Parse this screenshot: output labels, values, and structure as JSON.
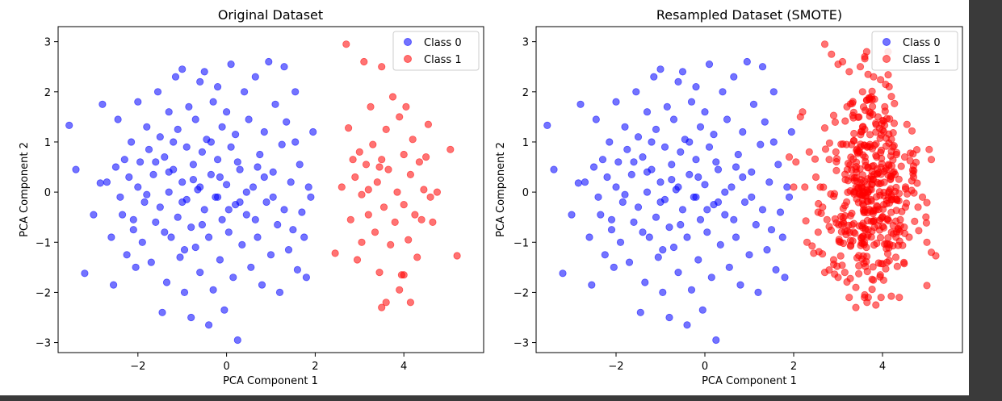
{
  "chart_data": [
    {
      "type": "scatter",
      "title": "Original Dataset",
      "xlabel": "PCA Component 1",
      "ylabel": "PCA Component 2",
      "xlim": [
        -3.8,
        5.8
      ],
      "ylim": [
        -3.2,
        3.3
      ],
      "xticks": [
        -2,
        0,
        2,
        4
      ],
      "yticks": [
        -3,
        -2,
        -1,
        0,
        1,
        2,
        3
      ],
      "xtick_labels": [
        "−2",
        "0",
        "2",
        "4"
      ],
      "ytick_labels": [
        "−3",
        "−2",
        "−1",
        "0",
        "1",
        "2",
        "3"
      ],
      "grid": false,
      "legend_position": "top-right",
      "series": [
        {
          "name": "Class 0",
          "color": "#0000ff",
          "points": [
            [
              -3.55,
              1.33
            ],
            [
              -3.4,
              0.45
            ],
            [
              -3.2,
              -1.62
            ],
            [
              -3.0,
              -0.45
            ],
            [
              -2.85,
              0.18
            ],
            [
              -2.8,
              1.75
            ],
            [
              -2.7,
              0.2
            ],
            [
              -2.6,
              -0.9
            ],
            [
              -2.55,
              -1.85
            ],
            [
              -2.5,
              0.5
            ],
            [
              -2.45,
              1.45
            ],
            [
              -2.4,
              -0.1
            ],
            [
              -2.35,
              -0.45
            ],
            [
              -2.3,
              0.65
            ],
            [
              -2.25,
              -1.25
            ],
            [
              -2.2,
              0.3
            ],
            [
              -2.15,
              1.0
            ],
            [
              -2.1,
              -0.75
            ],
            [
              -2.05,
              -1.5
            ],
            [
              -2.0,
              0.1
            ],
            [
              -2.0,
              1.8
            ],
            [
              -1.95,
              0.6
            ],
            [
              -1.9,
              -1.0
            ],
            [
              -1.85,
              -0.2
            ],
            [
              -1.8,
              1.3
            ],
            [
              -1.75,
              0.85
            ],
            [
              -1.7,
              -1.4
            ],
            [
              -1.65,
              0.35
            ],
            [
              -1.6,
              -0.6
            ],
            [
              -1.55,
              2.0
            ],
            [
              -1.5,
              1.1
            ],
            [
              -1.5,
              -0.3
            ],
            [
              -1.45,
              -2.4
            ],
            [
              -1.4,
              0.7
            ],
            [
              -1.35,
              -1.8
            ],
            [
              -1.3,
              0.0
            ],
            [
              -1.3,
              1.6
            ],
            [
              -1.25,
              -0.9
            ],
            [
              -1.2,
              0.45
            ],
            [
              -1.15,
              2.3
            ],
            [
              -1.1,
              -0.5
            ],
            [
              -1.1,
              1.25
            ],
            [
              -1.05,
              -1.3
            ],
            [
              -1.0,
              0.2
            ],
            [
              -1.0,
              2.45
            ],
            [
              -0.95,
              -2.0
            ],
            [
              -0.9,
              0.9
            ],
            [
              -0.9,
              -0.15
            ],
            [
              -0.85,
              1.7
            ],
            [
              -0.8,
              -0.7
            ],
            [
              -0.8,
              -2.5
            ],
            [
              -0.75,
              0.55
            ],
            [
              -0.7,
              1.45
            ],
            [
              -0.7,
              -1.1
            ],
            [
              -0.65,
              0.05
            ],
            [
              -0.6,
              2.2
            ],
            [
              -0.6,
              -1.6
            ],
            [
              -0.55,
              0.8
            ],
            [
              -0.5,
              -0.35
            ],
            [
              -0.5,
              2.4
            ],
            [
              -0.45,
              1.05
            ],
            [
              -0.4,
              -2.65
            ],
            [
              -0.4,
              -0.9
            ],
            [
              -0.35,
              0.35
            ],
            [
              -0.3,
              1.8
            ],
            [
              -0.3,
              -1.95
            ],
            [
              -0.25,
              -0.1
            ],
            [
              -0.2,
              0.65
            ],
            [
              -0.2,
              2.1
            ],
            [
              -0.15,
              -1.35
            ],
            [
              -0.1,
              1.3
            ],
            [
              -0.1,
              -0.55
            ],
            [
              -0.05,
              -2.35
            ],
            [
              0.0,
              0.15
            ],
            [
              0.0,
              1.6
            ],
            [
              0.05,
              -0.8
            ],
            [
              0.1,
              2.55
            ],
            [
              0.1,
              0.9
            ],
            [
              0.15,
              -1.7
            ],
            [
              0.2,
              -0.25
            ],
            [
              0.2,
              1.15
            ],
            [
              0.25,
              -2.95
            ],
            [
              0.3,
              0.45
            ],
            [
              0.35,
              -1.05
            ],
            [
              0.4,
              2.0
            ],
            [
              0.45,
              -0.45
            ],
            [
              0.5,
              1.45
            ],
            [
              0.55,
              -1.5
            ],
            [
              0.6,
              0.1
            ],
            [
              0.65,
              2.3
            ],
            [
              0.7,
              -0.9
            ],
            [
              0.75,
              0.75
            ],
            [
              0.8,
              -1.85
            ],
            [
              0.85,
              1.2
            ],
            [
              0.9,
              -0.2
            ],
            [
              0.95,
              2.6
            ],
            [
              1.0,
              -1.25
            ],
            [
              1.05,
              0.4
            ],
            [
              1.1,
              1.75
            ],
            [
              1.15,
              -0.65
            ],
            [
              1.2,
              -2.0
            ],
            [
              1.25,
              0.95
            ],
            [
              1.3,
              -0.35
            ],
            [
              1.35,
              1.4
            ],
            [
              1.4,
              -1.15
            ],
            [
              1.45,
              0.2
            ],
            [
              1.5,
              -0.75
            ],
            [
              1.55,
              1.0
            ],
            [
              1.6,
              -1.55
            ],
            [
              1.65,
              0.55
            ],
            [
              1.7,
              -0.4
            ],
            [
              1.75,
              -0.9
            ],
            [
              1.8,
              -1.7
            ],
            [
              1.85,
              0.1
            ],
            [
              1.9,
              -0.1
            ],
            [
              1.95,
              1.2
            ],
            [
              1.55,
              2.0
            ],
            [
              1.3,
              2.5
            ],
            [
              -2.1,
              -0.55
            ],
            [
              -1.8,
              -0.05
            ],
            [
              -1.6,
              0.6
            ],
            [
              -1.4,
              -0.8
            ],
            [
              -1.2,
              1.0
            ],
            [
              -0.95,
              -1.15
            ],
            [
              -0.75,
              0.25
            ],
            [
              -0.55,
              -0.65
            ],
            [
              -0.35,
              1.0
            ],
            [
              -0.15,
              0.3
            ],
            [
              0.05,
              -0.35
            ],
            [
              0.25,
              0.6
            ],
            [
              0.45,
              0.0
            ],
            [
              0.65,
              -0.55
            ],
            [
              0.85,
              0.3
            ],
            [
              -1.0,
              -0.2
            ],
            [
              -0.6,
              0.1
            ],
            [
              -0.2,
              -0.1
            ],
            [
              0.3,
              -0.2
            ],
            [
              0.7,
              0.5
            ],
            [
              1.05,
              -0.1
            ],
            [
              -1.3,
              0.4
            ]
          ]
        },
        {
          "name": "Class 1",
          "color": "#ff0000",
          "points": [
            [
              2.45,
              -1.22
            ],
            [
              2.6,
              0.1
            ],
            [
              2.7,
              2.95
            ],
            [
              2.75,
              1.28
            ],
            [
              2.8,
              -0.55
            ],
            [
              2.85,
              0.65
            ],
            [
              2.9,
              0.3
            ],
            [
              2.95,
              -1.35
            ],
            [
              3.0,
              0.8
            ],
            [
              3.05,
              -0.05
            ],
            [
              3.05,
              -1.0
            ],
            [
              3.1,
              2.6
            ],
            [
              3.15,
              0.55
            ],
            [
              3.2,
              -0.45
            ],
            [
              3.25,
              1.7
            ],
            [
              3.3,
              0.95
            ],
            [
              3.35,
              -0.8
            ],
            [
              3.4,
              0.2
            ],
            [
              3.45,
              -1.6
            ],
            [
              3.5,
              2.5
            ],
            [
              3.5,
              0.65
            ],
            [
              3.55,
              -0.3
            ],
            [
              3.6,
              1.25
            ],
            [
              3.6,
              -2.2
            ],
            [
              3.65,
              0.45
            ],
            [
              3.7,
              -1.05
            ],
            [
              3.75,
              1.9
            ],
            [
              3.8,
              -0.6
            ],
            [
              3.85,
              0.0
            ],
            [
              3.9,
              1.5
            ],
            [
              3.95,
              -1.65
            ],
            [
              4.0,
              0.75
            ],
            [
              4.0,
              -0.25
            ],
            [
              4.05,
              1.7
            ],
            [
              4.1,
              -0.95
            ],
            [
              4.15,
              0.35
            ],
            [
              4.2,
              1.05
            ],
            [
              4.25,
              -0.45
            ],
            [
              4.3,
              -1.3
            ],
            [
              4.35,
              0.6
            ],
            [
              4.4,
              -0.55
            ],
            [
              4.45,
              0.05
            ],
            [
              4.5,
              0.7
            ],
            [
              4.55,
              1.35
            ],
            [
              4.6,
              -0.1
            ],
            [
              4.65,
              -0.6
            ],
            [
              3.5,
              -2.3
            ],
            [
              3.9,
              -1.95
            ],
            [
              4.15,
              -2.2
            ],
            [
              3.2,
              0.05
            ],
            [
              5.05,
              0.85
            ],
            [
              5.2,
              -1.27
            ],
            [
              4.0,
              -1.65
            ],
            [
              3.45,
              0.5
            ],
            [
              4.75,
              0.0
            ]
          ]
        }
      ]
    },
    {
      "type": "scatter",
      "title": "Resampled Dataset (SMOTE)",
      "xlabel": "PCA Component 1",
      "ylabel": "PCA Component 2",
      "xlim": [
        -3.8,
        5.8
      ],
      "ylim": [
        -3.2,
        3.3
      ],
      "xticks": [
        -2,
        0,
        2,
        4
      ],
      "yticks": [
        -3,
        -2,
        -1,
        0,
        1,
        2,
        3
      ],
      "xtick_labels": [
        "−2",
        "0",
        "2",
        "4"
      ],
      "ytick_labels": [
        "−3",
        "−2",
        "−1",
        "0",
        "1",
        "2",
        "3"
      ],
      "grid": false,
      "legend_position": "top-right",
      "series": [
        {
          "name": "Class 0",
          "color": "#0000ff",
          "same_as_original": true,
          "points": []
        },
        {
          "name": "Class 1",
          "color": "#ff0000",
          "points": [
            [
              1.9,
              0.7
            ],
            [
              2.0,
              0.1
            ],
            [
              2.05,
              0.6
            ],
            [
              2.15,
              1.5
            ],
            [
              2.2,
              1.6
            ],
            [
              2.25,
              0.1
            ],
            [
              2.3,
              -1.0
            ],
            [
              2.35,
              0.8
            ],
            [
              2.45,
              -1.22
            ],
            [
              2.5,
              0.3
            ],
            [
              2.55,
              -0.8
            ],
            [
              2.6,
              0.1
            ],
            [
              2.65,
              -0.3
            ],
            [
              2.7,
              2.95
            ],
            [
              2.7,
              1.28
            ],
            [
              2.75,
              -0.55
            ],
            [
              2.8,
              0.65
            ],
            [
              2.85,
              2.75
            ],
            [
              2.9,
              -1.35
            ],
            [
              2.95,
              0.8
            ],
            [
              3.0,
              2.55
            ],
            [
              3.05,
              -1.0
            ],
            [
              3.1,
              2.6
            ],
            [
              3.15,
              -1.6
            ],
            [
              3.2,
              1.7
            ],
            [
              3.25,
              2.4
            ],
            [
              3.3,
              0.95
            ],
            [
              3.35,
              -0.8
            ],
            [
              3.4,
              -1.9
            ],
            [
              3.5,
              2.5
            ],
            [
              3.55,
              2.0
            ],
            [
              3.6,
              1.25
            ],
            [
              3.65,
              -2.2
            ],
            [
              3.7,
              1.6
            ],
            [
              3.75,
              1.9
            ],
            [
              3.85,
              -2.25
            ],
            [
              3.9,
              1.5
            ],
            [
              3.95,
              -1.65
            ],
            [
              4.05,
              1.7
            ],
            [
              4.1,
              -1.4
            ],
            [
              4.2,
              1.05
            ],
            [
              4.3,
              -1.3
            ],
            [
              4.4,
              -0.55
            ],
            [
              4.5,
              0.7
            ],
            [
              4.55,
              1.35
            ],
            [
              4.6,
              -0.9
            ],
            [
              4.7,
              0.3
            ],
            [
              4.8,
              -0.3
            ],
            [
              4.9,
              -0.1
            ],
            [
              5.0,
              -1.0
            ],
            [
              5.05,
              0.85
            ],
            [
              5.1,
              0.65
            ],
            [
              5.2,
              -1.27
            ],
            [
              5.1,
              -1.2
            ],
            [
              3.4,
              -2.3
            ],
            [
              3.6,
              -2.05
            ],
            [
              3.0,
              -1.7
            ],
            [
              2.7,
              -1.6
            ],
            [
              3.8,
              2.3
            ],
            [
              3.6,
              2.7
            ]
          ],
          "dense_cluster": {
            "x_range": [
              2.8,
              4.6
            ],
            "y_range": [
              -1.5,
              1.5
            ],
            "count": 420
          }
        }
      ]
    }
  ]
}
